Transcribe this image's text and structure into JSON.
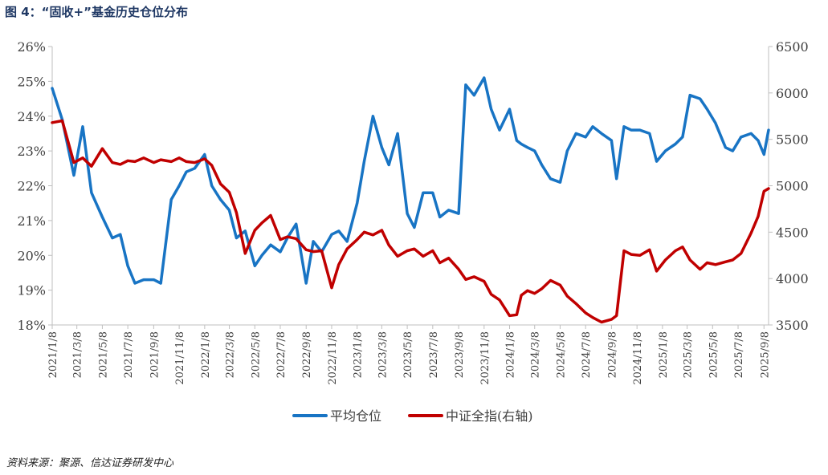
{
  "figure_title": "图 4：“固收+”基金历史仓位分布",
  "source_note": "资料来源：聚源、信达证券研发中心",
  "colors": {
    "series1": "#1874C4",
    "series2": "#C00000",
    "axis": "#BFBFBF",
    "tick_text": "#404040",
    "title": "#1F3864"
  },
  "chart_data": {
    "type": "line",
    "title": "",
    "x_dates": [
      "2021-01-08",
      "2021-02-01",
      "2021-03-01",
      "2021-03-22",
      "2021-04-12",
      "2021-05-08",
      "2021-06-01",
      "2021-06-20",
      "2021-07-08",
      "2021-07-25",
      "2021-08-15",
      "2021-09-08",
      "2021-09-25",
      "2021-10-20",
      "2021-11-08",
      "2021-11-25",
      "2021-12-15",
      "2022-01-08",
      "2022-01-25",
      "2022-02-15",
      "2022-03-08",
      "2022-03-25",
      "2022-04-15",
      "2022-05-08",
      "2022-05-25",
      "2022-06-15",
      "2022-07-08",
      "2022-07-25",
      "2022-08-15",
      "2022-09-08",
      "2022-09-25",
      "2022-10-15",
      "2022-11-08",
      "2022-11-25",
      "2022-12-15",
      "2023-01-08",
      "2023-01-25",
      "2023-02-15",
      "2023-03-08",
      "2023-03-25",
      "2023-04-15",
      "2023-05-08",
      "2023-05-25",
      "2023-06-15",
      "2023-07-08",
      "2023-07-25",
      "2023-08-15",
      "2023-09-08",
      "2023-09-25",
      "2023-10-15",
      "2023-11-08",
      "2023-11-25",
      "2023-12-15",
      "2024-01-08",
      "2024-01-25",
      "2024-02-05",
      "2024-02-20",
      "2024-03-08",
      "2024-03-25",
      "2024-04-15",
      "2024-05-08",
      "2024-05-25",
      "2024-06-15",
      "2024-07-08",
      "2024-07-25",
      "2024-08-15",
      "2024-09-08",
      "2024-09-20",
      "2024-10-08",
      "2024-10-25",
      "2024-11-15",
      "2024-12-08",
      "2024-12-25",
      "2025-01-15",
      "2025-02-08",
      "2025-02-25",
      "2025-03-15",
      "2025-04-08",
      "2025-04-25",
      "2025-05-15",
      "2025-06-08",
      "2025-06-25",
      "2025-07-15",
      "2025-08-08",
      "2025-08-25",
      "2025-09-08",
      "2025-09-19"
    ],
    "x_tick_labels": [
      "2021/1/8",
      "2021/3/8",
      "2021/5/8",
      "2021/7/8",
      "2021/9/8",
      "2021/11/8",
      "2022/1/8",
      "2022/3/8",
      "2022/5/8",
      "2022/7/8",
      "2022/9/8",
      "2022/11/8",
      "2023/1/8",
      "2023/3/8",
      "2023/5/8",
      "2023/7/8",
      "2023/9/8",
      "2023/11/8",
      "2024/1/8",
      "2024/3/8",
      "2024/5/8",
      "2024/7/8",
      "2024/9/8",
      "2024/11/8",
      "2025/1/8",
      "2025/3/8",
      "2025/5/8",
      "2025/7/8",
      "2025/9/8"
    ],
    "x_tick_dates": [
      "2021-01-08",
      "2021-03-08",
      "2021-05-08",
      "2021-07-08",
      "2021-09-08",
      "2021-11-08",
      "2022-01-08",
      "2022-03-08",
      "2022-05-08",
      "2022-07-08",
      "2022-09-08",
      "2022-11-08",
      "2023-01-08",
      "2023-03-08",
      "2023-05-08",
      "2023-07-08",
      "2023-09-08",
      "2023-11-08",
      "2024-01-08",
      "2024-03-08",
      "2024-05-08",
      "2024-07-08",
      "2024-09-08",
      "2024-11-08",
      "2025-01-08",
      "2025-03-08",
      "2025-05-08",
      "2025-07-08",
      "2025-09-08"
    ],
    "y_left": {
      "label": "",
      "min": 18,
      "max": 26,
      "ticks": [
        "18%",
        "19%",
        "20%",
        "21%",
        "22%",
        "23%",
        "24%",
        "25%",
        "26%"
      ]
    },
    "y_right": {
      "label": "",
      "min": 3500,
      "max": 6500,
      "ticks": [
        "3500",
        "4000",
        "4500",
        "5000",
        "5500",
        "6000",
        "6500"
      ]
    },
    "series": [
      {
        "name": "平均仓位",
        "axis": "left",
        "values": [
          24.8,
          23.9,
          22.3,
          23.7,
          21.8,
          21.1,
          20.5,
          20.6,
          19.7,
          19.2,
          19.3,
          19.3,
          19.2,
          21.6,
          22.0,
          22.4,
          22.5,
          22.9,
          22.0,
          21.6,
          21.3,
          20.5,
          20.7,
          19.7,
          20.0,
          20.3,
          20.1,
          20.5,
          20.9,
          19.2,
          20.4,
          20.1,
          20.6,
          20.7,
          20.4,
          21.5,
          22.7,
          24.0,
          23.1,
          22.6,
          23.5,
          21.2,
          20.8,
          21.8,
          21.8,
          21.1,
          21.3,
          21.2,
          24.9,
          24.6,
          25.1,
          24.2,
          23.6,
          24.2,
          23.3,
          23.2,
          23.1,
          23.0,
          22.6,
          22.2,
          22.1,
          23.0,
          23.5,
          23.4,
          23.7,
          23.5,
          23.3,
          22.2,
          23.7,
          23.6,
          23.6,
          23.5,
          22.7,
          23.0,
          23.2,
          23.4,
          24.6,
          24.5,
          24.2,
          23.8,
          23.1,
          23.0,
          23.4,
          23.5,
          23.3,
          22.9,
          23.6
        ]
      },
      {
        "name": "中证全指(右轴)",
        "axis": "right",
        "values": [
          5680,
          5700,
          5250,
          5300,
          5210,
          5400,
          5250,
          5230,
          5270,
          5260,
          5300,
          5250,
          5280,
          5260,
          5300,
          5260,
          5250,
          5290,
          5220,
          5020,
          4930,
          4710,
          4270,
          4520,
          4600,
          4680,
          4420,
          4450,
          4430,
          4310,
          4290,
          4300,
          3900,
          4150,
          4320,
          4420,
          4500,
          4470,
          4520,
          4360,
          4240,
          4300,
          4320,
          4240,
          4300,
          4170,
          4220,
          4100,
          3990,
          4020,
          3970,
          3830,
          3770,
          3600,
          3610,
          3820,
          3870,
          3840,
          3890,
          3980,
          3930,
          3810,
          3730,
          3630,
          3580,
          3530,
          3560,
          3600,
          4300,
          4260,
          4250,
          4310,
          4080,
          4200,
          4300,
          4340,
          4200,
          4100,
          4170,
          4150,
          4180,
          4200,
          4270,
          4490,
          4670,
          4940,
          4970
        ]
      }
    ],
    "legend": {
      "placement": "bottom-center",
      "entries": [
        "平均仓位",
        "中证全指(右轴)"
      ]
    },
    "grid": false
  }
}
